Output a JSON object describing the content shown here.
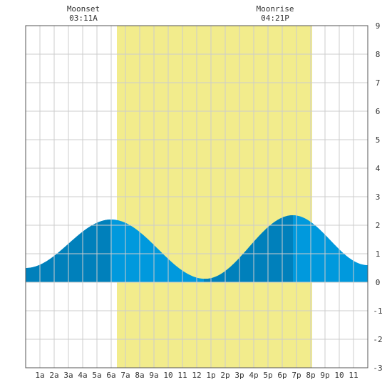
{
  "events": {
    "moonset": {
      "label": "Moonset",
      "time": "03:11A"
    },
    "moonrise": {
      "label": "Moonrise",
      "time": "04:21P"
    }
  },
  "colors": {
    "daylight": "#f2ec8c",
    "tide_light": "#0099dd",
    "tide_dark": "#0080bb",
    "grid": "#cccccc",
    "frame": "#555555",
    "text": "#333333"
  },
  "chart_data": {
    "type": "area",
    "x_unit": "hour of day",
    "y_unit": "ft",
    "xlim": [
      0,
      24
    ],
    "ylim": [
      -3,
      9
    ],
    "y_ticks": [
      9,
      8,
      7,
      6,
      5,
      4,
      3,
      2,
      1,
      0,
      -1,
      -2,
      -3
    ],
    "y_tick_labels": [
      "9",
      "8",
      "7",
      "6",
      "5",
      "4",
      "3",
      "2",
      "1",
      "0",
      "-1",
      "-2",
      "-3"
    ],
    "x_tick_labels": [
      "1a",
      "2a",
      "3a",
      "4a",
      "5a",
      "6a",
      "7a",
      "8a",
      "9a",
      "10",
      "11",
      "12",
      "1p",
      "2p",
      "3p",
      "4p",
      "5p",
      "6p",
      "7p",
      "8p",
      "9p",
      "10",
      "11"
    ],
    "daylight": {
      "start_hour": 6.4,
      "end_hour": 20.1
    },
    "dark_bands_hours": [
      [
        0,
        5.95
      ],
      [
        12.5,
        18.75
      ]
    ],
    "tide_extremes": [
      {
        "hour": 0.0,
        "height": 0.5
      },
      {
        "hour": 6.0,
        "height": 2.2
      },
      {
        "hour": 12.6,
        "height": 0.12
      },
      {
        "hour": 18.75,
        "height": 2.35
      },
      {
        "hour": 24.0,
        "height": 0.6
      }
    ],
    "grid": true
  }
}
